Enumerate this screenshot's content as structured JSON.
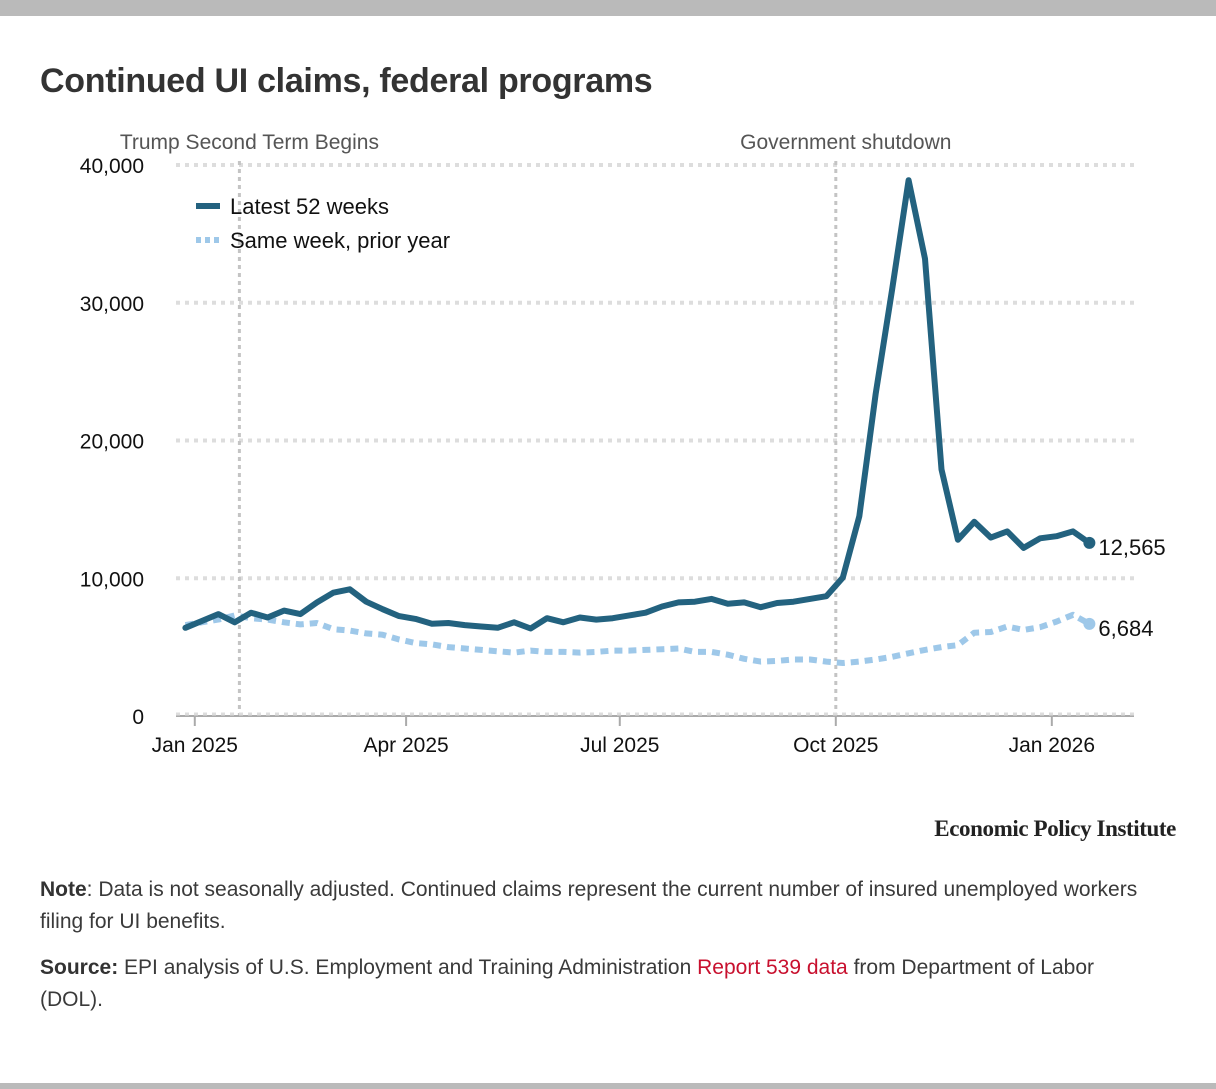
{
  "title": "Continued UI claims, federal programs",
  "colors": {
    "latest": "#23627f",
    "prior": "#9ec8e9",
    "grid": "#dddddd",
    "event_line": "#c4c4c4",
    "axis": "#aaaaaa",
    "link": "#c8102e"
  },
  "publisher": "Economic Policy Institute",
  "note": {
    "label": "Note",
    "text": ": Data is not seasonally adjusted. Continued claims represent the current number of insured unemployed workers filing for UI benefits."
  },
  "source": {
    "label": "Source:",
    "text_before": " EPI analysis of U.S. Employment and Training Administration ",
    "link_text": "Report 539 data",
    "text_after": " from Department of Labor (DOL)."
  },
  "chart_data": {
    "type": "line",
    "title": "Continued UI claims, federal programs",
    "xlabel": "",
    "ylabel": "",
    "ylim": [
      0,
      40000
    ],
    "yticks": [
      0,
      10000,
      20000,
      30000,
      40000
    ],
    "ytick_labels": [
      "0",
      "10,000",
      "20,000",
      "30,000",
      "40,000"
    ],
    "x_start": "2024-12-28",
    "x_step_days": 7,
    "xlim": [
      "2024-12-24",
      "2026-02-05"
    ],
    "xticks": [
      "2025-01-01",
      "2025-04-01",
      "2025-07-01",
      "2025-10-01",
      "2026-01-01"
    ],
    "xtick_labels": [
      "Jan 2025",
      "Apr 2025",
      "Jul 2025",
      "Oct 2025",
      "Jan 2026"
    ],
    "grid": true,
    "legend_position": "top-left",
    "series": [
      {
        "name": "Latest 52 weeks",
        "style": "solid",
        "end_label": "12,565",
        "values": [
          6400,
          6900,
          7400,
          6800,
          7500,
          7150,
          7650,
          7400,
          8250,
          8950,
          9200,
          8300,
          7750,
          7250,
          7050,
          6700,
          6750,
          6600,
          6500,
          6400,
          6800,
          6350,
          7100,
          6800,
          7150,
          7000,
          7100,
          7300,
          7500,
          7950,
          8250,
          8300,
          8500,
          8150,
          8250,
          7900,
          8200,
          8300,
          8500,
          8700,
          10050,
          14500,
          23400,
          31000,
          38900,
          33200,
          17900,
          12800,
          14100,
          12950,
          13400,
          12200,
          12900,
          13050,
          13400,
          12565
        ]
      },
      {
        "name": "Same week, prior year",
        "style": "dotted",
        "end_label": "6,684",
        "values": [
          6600,
          6800,
          7000,
          7300,
          7100,
          7000,
          6800,
          6650,
          6750,
          6300,
          6200,
          6000,
          5900,
          5550,
          5300,
          5200,
          5000,
          4900,
          4800,
          4700,
          4600,
          4750,
          4650,
          4650,
          4600,
          4650,
          4750,
          4750,
          4800,
          4850,
          4900,
          4650,
          4650,
          4450,
          4150,
          3950,
          4000,
          4100,
          4100,
          3950,
          3850,
          3950,
          4100,
          4300,
          4550,
          4800,
          5000,
          5150,
          6050,
          6100,
          6500,
          6250,
          6450,
          6850,
          7350,
          6684
        ]
      }
    ],
    "annotations": [
      {
        "date": "2025-01-20",
        "label": "Trump Second Term Begins"
      },
      {
        "date": "2025-10-01",
        "label": "Government shutdown"
      }
    ]
  }
}
